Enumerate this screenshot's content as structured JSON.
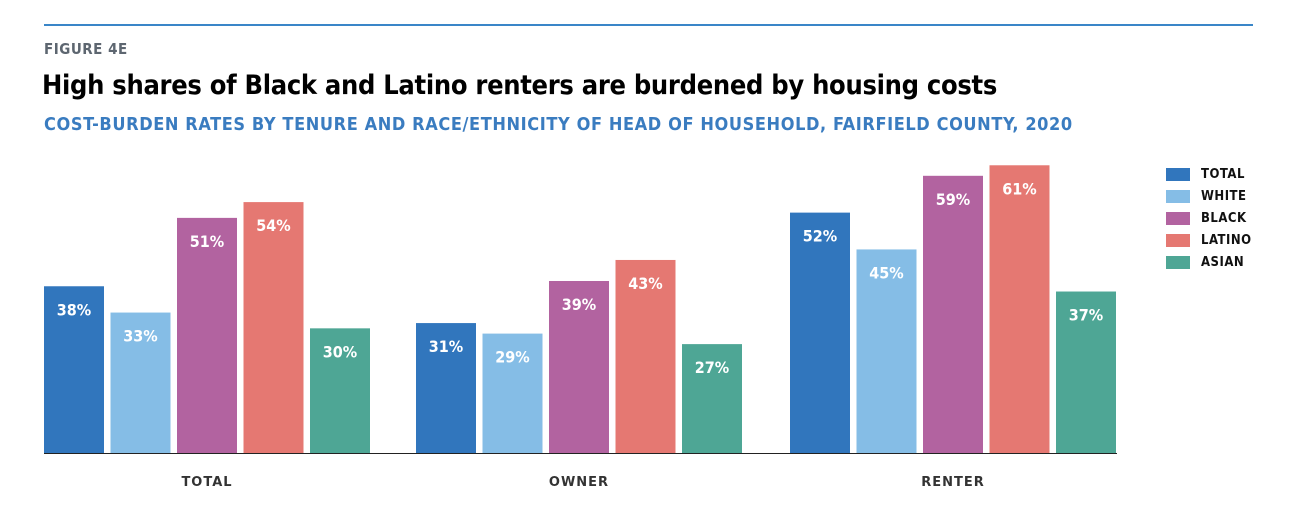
{
  "header": {
    "figure": "FIGURE 4E",
    "title": "High shares of Black and Latino renters are burdened by housing costs",
    "subtitle": "COST-BURDEN RATES BY TENURE AND RACE/ETHNICITY OF HEAD OF HOUSEHOLD, FAIRFIELD COUNTY, 2020"
  },
  "chart_data": {
    "type": "bar",
    "title": "High shares of Black and Latino renters are burdened by housing costs",
    "categories": [
      "TOTAL",
      "OWNER",
      "RENTER"
    ],
    "series": [
      {
        "name": "TOTAL",
        "color": "#3176bd",
        "values": [
          38,
          31,
          52
        ]
      },
      {
        "name": "WHITE",
        "color": "#85bde6",
        "values": [
          33,
          29,
          45
        ]
      },
      {
        "name": "BLACK",
        "color": "#b263a0",
        "values": [
          51,
          39,
          59
        ]
      },
      {
        "name": "LATINO",
        "color": "#e57872",
        "values": [
          54,
          43,
          61
        ]
      },
      {
        "name": "ASIAN",
        "color": "#4ea695",
        "values": [
          30,
          27,
          37
        ]
      }
    ],
    "value_suffix": "%",
    "legend": "right"
  }
}
